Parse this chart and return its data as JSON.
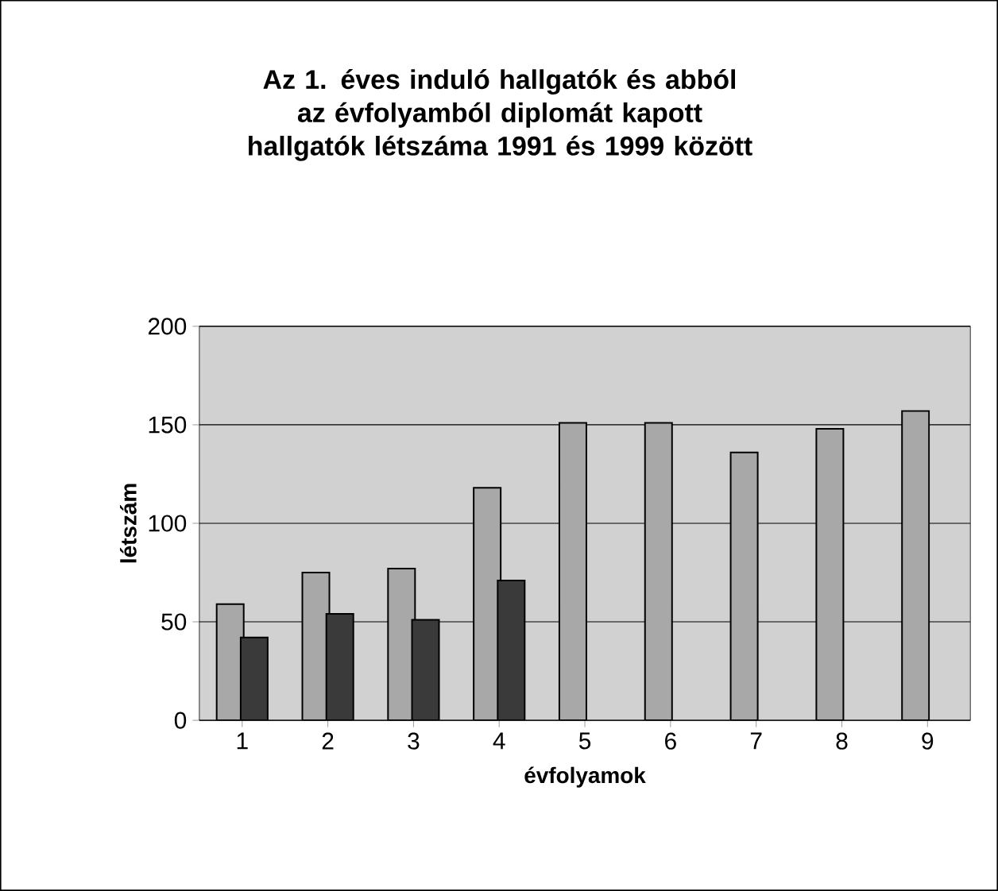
{
  "chart_data": {
    "type": "bar",
    "title": "Az 1. éves induló hallgatók és abból az évfolyamból diplomát kapott hallgatók létszáma 1991 és 1999 között",
    "xlabel": "évfolyamok",
    "ylabel": "létszám",
    "categories": [
      "1",
      "2",
      "3",
      "4",
      "5",
      "6",
      "7",
      "8",
      "9"
    ],
    "series": [
      {
        "color": "#a8a8a8",
        "values": [
          59,
          75,
          77,
          118,
          151,
          151,
          136,
          148,
          157
        ]
      },
      {
        "color": "#3a3a3a",
        "values": [
          42,
          54,
          51,
          71,
          null,
          null,
          null,
          null,
          null
        ]
      }
    ],
    "ylim": [
      0,
      200
    ],
    "yticks": [
      0,
      50,
      100,
      150,
      200
    ],
    "grid": "y"
  }
}
